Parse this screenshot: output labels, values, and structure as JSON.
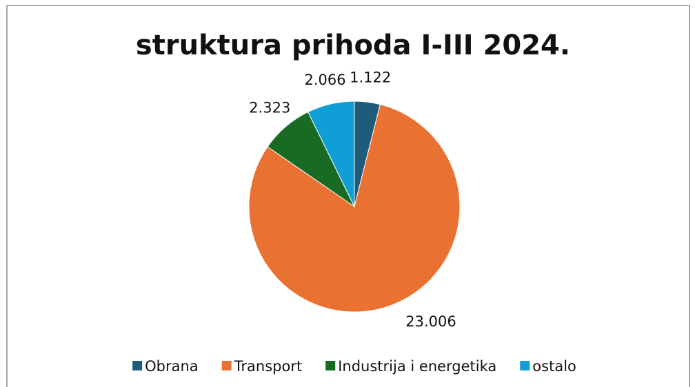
{
  "chart_data": {
    "type": "pie",
    "title": "struktura prihoda I-III 2024.",
    "categories": [
      "Obrana",
      "Transport",
      "Industrija i energetika",
      "ostalo"
    ],
    "values": [
      1122,
      23006,
      2323,
      2066
    ],
    "value_labels": [
      "1.122",
      "23.006",
      "2.323",
      "2.066"
    ],
    "colors": [
      "#1f5c7a",
      "#e97132",
      "#196b24",
      "#0f9ed5"
    ],
    "legend": "bottom"
  }
}
